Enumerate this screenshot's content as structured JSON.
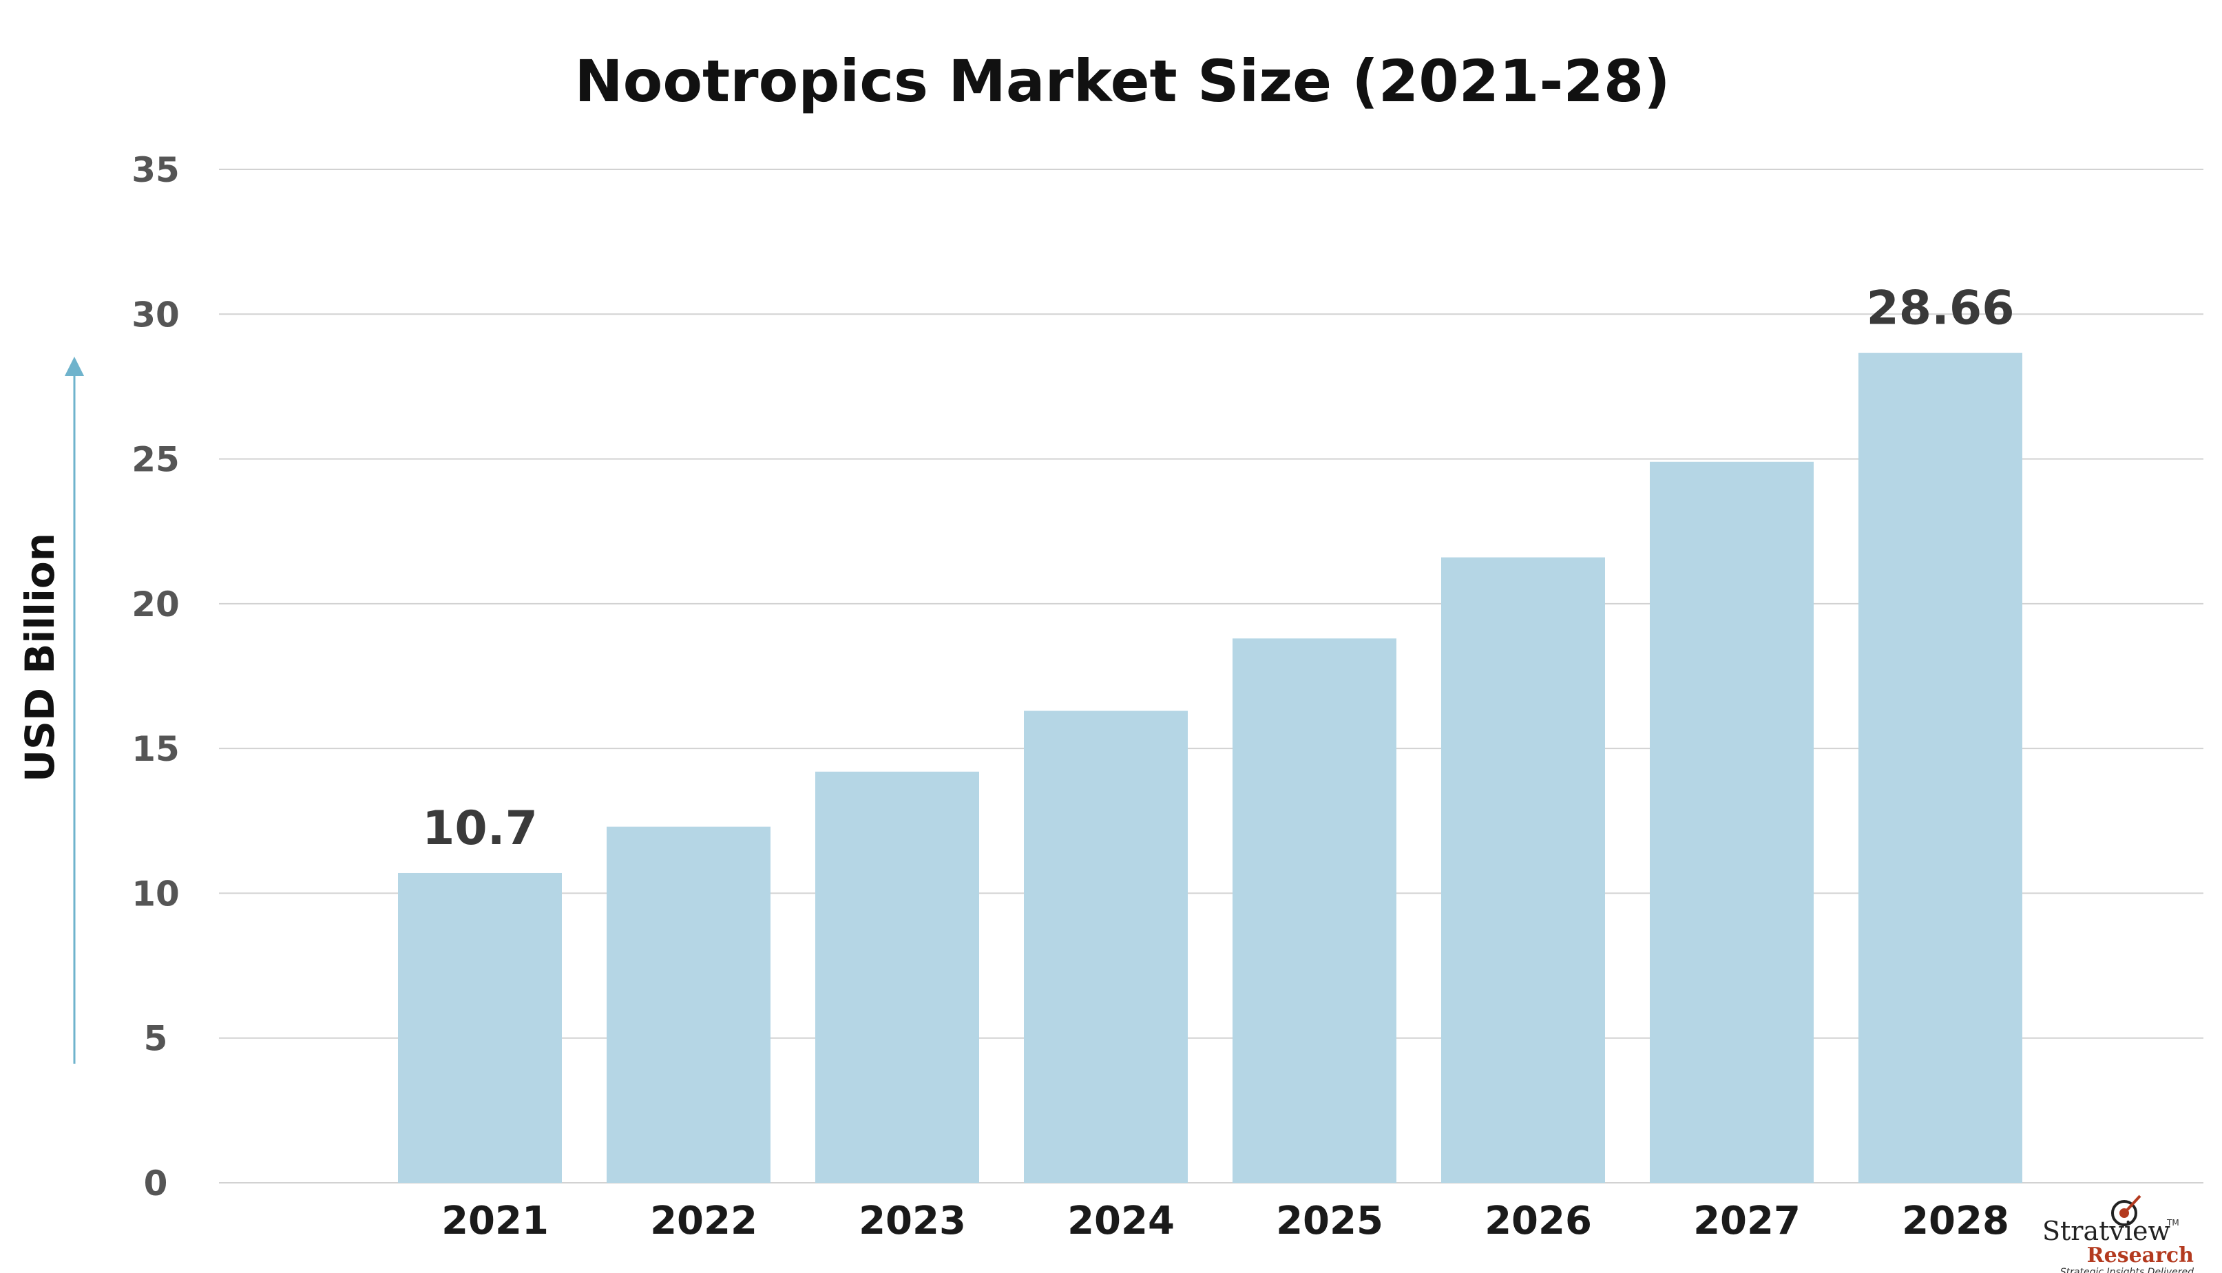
{
  "chart_data": {
    "type": "bar",
    "title": "Nootropics Market Size (2021-28)",
    "ylabel": "USD Billion",
    "xlabel": "",
    "categories": [
      "2021",
      "2022",
      "2023",
      "2024",
      "2025",
      "2026",
      "2027",
      "2028"
    ],
    "values": [
      10.7,
      12.3,
      14.2,
      16.3,
      18.8,
      21.6,
      24.9,
      28.66
    ],
    "data_labels": [
      {
        "category": "2021",
        "text": "10.7"
      },
      {
        "category": "2028",
        "text": "28.66"
      }
    ],
    "ylim": [
      0,
      35
    ],
    "yticks": [
      0,
      5,
      10,
      15,
      20,
      25,
      30,
      35
    ],
    "grid": true,
    "bar_color": "#b5d6e5",
    "grid_color": "#d2d2d2",
    "arrow_color": "#6fb3cc"
  },
  "logo": {
    "name": "Stratview",
    "sub": "Research",
    "tagline": "Strategic Insights Delivered",
    "tm": "TM"
  }
}
